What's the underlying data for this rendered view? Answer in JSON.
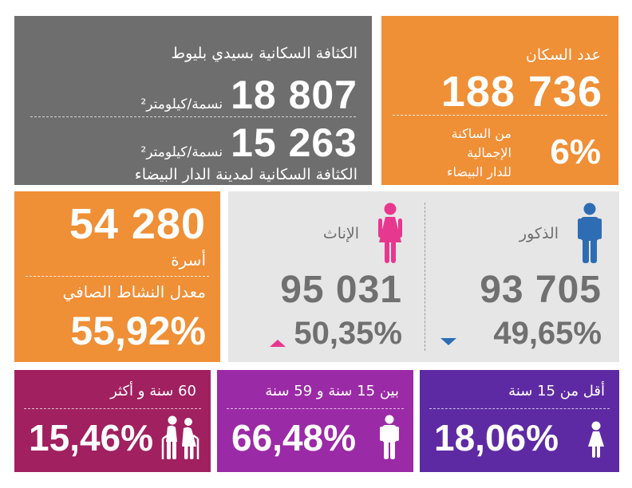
{
  "population": {
    "label": "عدد السكان",
    "value": "188 736",
    "share_pct": "6%",
    "share_text": [
      "من الساكنة",
      "الإجمالية",
      "للدار البيضاء"
    ]
  },
  "density": {
    "local_title": "الكثافة السكانية بسيدي بليوط",
    "local_value": "18 807",
    "unit": "نسمة/كيلومتر²",
    "city_value": "15 263",
    "city_title": "الكثافة السكانية لمدينة الدار البيضاء"
  },
  "households": {
    "value": "54 280",
    "label": "أسرة",
    "activity_label": "معدل النشاط الصافي",
    "activity_pct": "55,92%"
  },
  "gender": {
    "male": {
      "label": "الذكور",
      "value": "93 705",
      "pct": "49,65%",
      "color": "#2E6DB4",
      "icon": "male-icon",
      "trend": "down"
    },
    "female": {
      "label": "الإناث",
      "value": "95 031",
      "pct": "50,35%",
      "color": "#E7388F",
      "icon": "female-icon",
      "trend": "up"
    }
  },
  "age_groups": [
    {
      "label": "أقل من 15 سنة",
      "pct": "18,06%",
      "color": "#5E2AA3",
      "icon": "child-icon"
    },
    {
      "label": "بين 15 سنة و 59 سنة",
      "pct": "66,48%",
      "color": "#9B2AA6",
      "icon": "adult-icon"
    },
    {
      "label": "60 سنة و أكثر",
      "pct": "15,46%",
      "color": "#A1205F",
      "icon": "elderly-couple-icon"
    }
  ],
  "colors": {
    "orange": "#EF8F36",
    "dark_gray": "#6E6E6E",
    "light_gray": "#E6E6E6"
  }
}
